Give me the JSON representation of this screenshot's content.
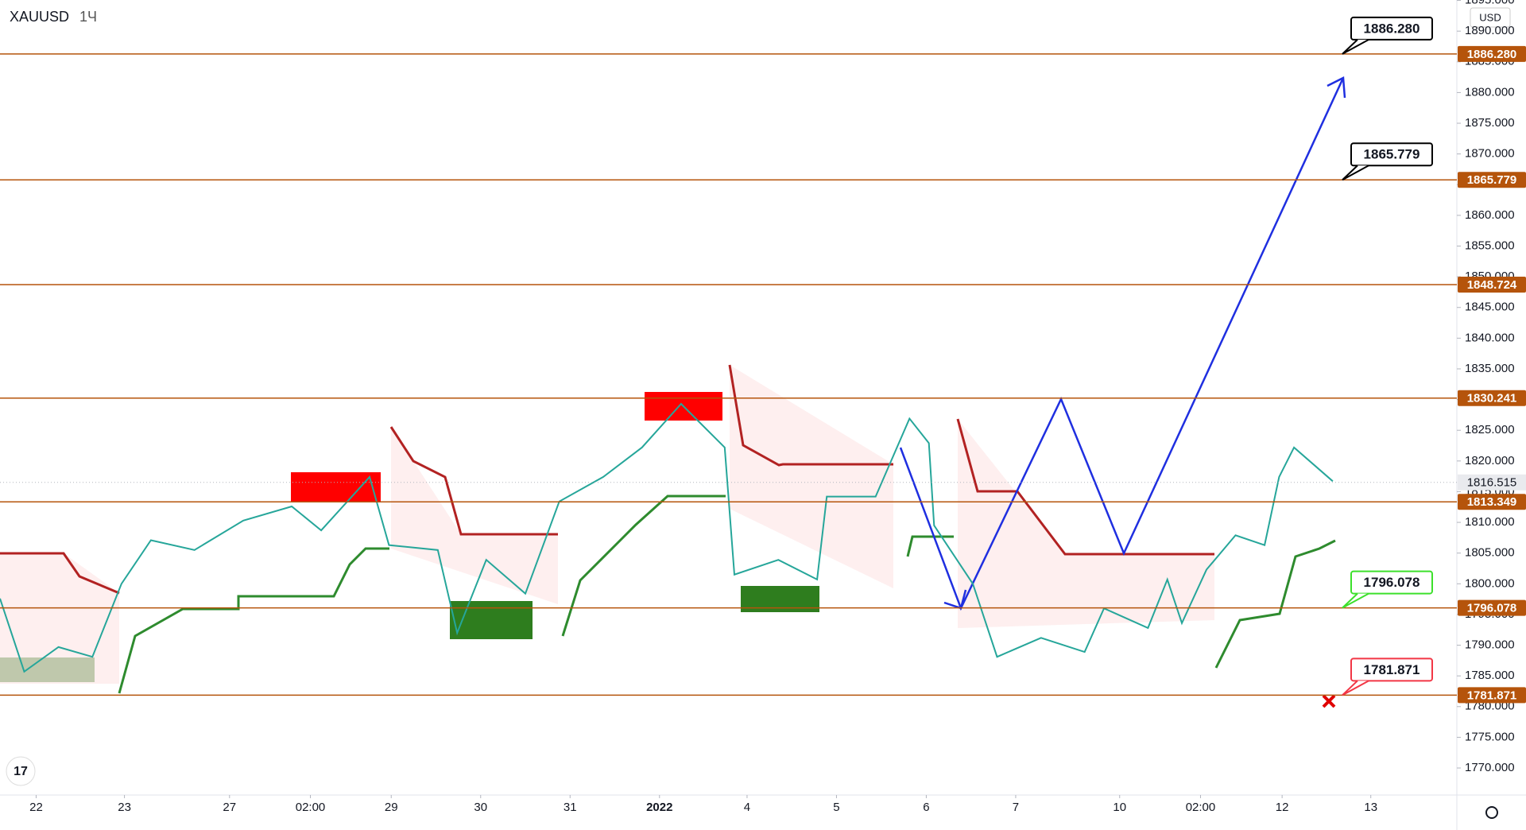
{
  "chart_data": {
    "type": "line",
    "symbol": "XAUUSD",
    "interval": "1Ч",
    "currency": "USD",
    "x": [
      0,
      6.5,
      15.7,
      24.8,
      32.6,
      40.5,
      52.2,
      65.3,
      78.3,
      86.2,
      99.2,
      104.4,
      117.5,
      122.7,
      130.5,
      141,
      150.1,
      161.9,
      172.3,
      182.8,
      194.5,
      197.1,
      208.9,
      219.3,
      221.9,
      235,
      244.1,
      249.3,
      250.7,
      261.1,
      267.6,
      279.4,
      291.1,
      296.3,
      308.1,
      313.3,
      317.2,
      323.8,
      331.6,
      339.4,
      343.3,
      347.3,
      357.7
    ],
    "series": [
      {
        "name": "XAUUSD",
        "color": "#26a69a",
        "values": [
          1797.6,
          1785.7,
          1789.7,
          1788.1,
          1800,
          1807.1,
          1805.5,
          1810.3,
          1812.6,
          1808.7,
          1817.4,
          1806.3,
          1805.5,
          1792,
          1803.9,
          1798.4,
          1813.4,
          1817.4,
          1822.2,
          1829.3,
          1822.2,
          1801.5,
          1803.9,
          1800.7,
          1814.2,
          1814.2,
          1826.9,
          1822.9,
          1809.5,
          1800,
          1788.1,
          1791.2,
          1788.9,
          1796,
          1792.8,
          1800.7,
          1793.6,
          1802.3,
          1807.9,
          1806.3,
          1817.4,
          1822.2,
          1816.7
        ]
      }
    ],
    "xlim": [
      0,
      391
    ],
    "xticks": [
      {
        "value": 9.7,
        "label": "22"
      },
      {
        "value": 33.4,
        "label": "23"
      },
      {
        "value": 61.6,
        "label": "27"
      },
      {
        "value": 83.3,
        "label": "02:00"
      },
      {
        "value": 105,
        "label": "29"
      },
      {
        "value": 129,
        "label": "30"
      },
      {
        "value": 153,
        "label": "31"
      },
      {
        "value": 177,
        "label": "2022"
      },
      {
        "value": 200.5,
        "label": "4"
      },
      {
        "value": 224.5,
        "label": "5"
      },
      {
        "value": 248.6,
        "label": "6"
      },
      {
        "value": 272.6,
        "label": "7"
      },
      {
        "value": 300.5,
        "label": "10"
      },
      {
        "value": 322.2,
        "label": "02:00"
      },
      {
        "value": 344.1,
        "label": "12"
      },
      {
        "value": 367.9,
        "label": "13"
      }
    ],
    "ylim": [
      1765.6,
      1895.07
    ],
    "yticks": [
      {
        "value": 1770,
        "label": "1770.000"
      },
      {
        "value": 1775,
        "label": "1775.000"
      },
      {
        "value": 1780,
        "label": "1780.000"
      },
      {
        "value": 1785,
        "label": "1785.000"
      },
      {
        "value": 1790,
        "label": "1790.000"
      },
      {
        "value": 1795,
        "label": "1795.000"
      },
      {
        "value": 1800,
        "label": "1800.000"
      },
      {
        "value": 1805,
        "label": "1805.000"
      },
      {
        "value": 1810,
        "label": "1810.000"
      },
      {
        "value": 1815,
        "label": "1815.000"
      },
      {
        "value": 1820,
        "label": "1820.000"
      },
      {
        "value": 1825,
        "label": "1825.000"
      },
      {
        "value": 1830,
        "label": "1830.000"
      },
      {
        "value": 1835,
        "label": "1835.000"
      },
      {
        "value": 1840,
        "label": "1840.000"
      },
      {
        "value": 1845,
        "label": "1845.000"
      },
      {
        "value": 1850,
        "label": "1850.000"
      },
      {
        "value": 1855,
        "label": "1855.000"
      },
      {
        "value": 1860,
        "label": "1860.000"
      },
      {
        "value": 1865,
        "label": "1865.000"
      },
      {
        "value": 1870,
        "label": "1870.000"
      },
      {
        "value": 1875,
        "label": "1875.000"
      },
      {
        "value": 1880,
        "label": "1880.000"
      },
      {
        "value": 1885,
        "label": "1885.000"
      },
      {
        "value": 1890,
        "label": "1890.000"
      },
      {
        "value": 1895,
        "label": "1895.000"
      }
    ],
    "level_color": "#b5540b",
    "levels": [
      {
        "value": 1886.28,
        "label": "1886.280",
        "callout_color": "#000000"
      },
      {
        "value": 1865.779,
        "label": "1865.779",
        "callout_color": "#000000"
      },
      {
        "value": 1848.724,
        "label": "1848.724"
      },
      {
        "value": 1830.241,
        "label": "1830.241"
      },
      {
        "value": 1813.349,
        "label": "1813.349"
      },
      {
        "value": 1796.078,
        "label": "1796.078",
        "callout_color": "#3ce02b"
      },
      {
        "value": 1781.871,
        "label": "1781.871",
        "callout_color": "#f23645"
      }
    ],
    "last_price": {
      "value": 1816.515,
      "label": "1816.515"
    }
  }
}
